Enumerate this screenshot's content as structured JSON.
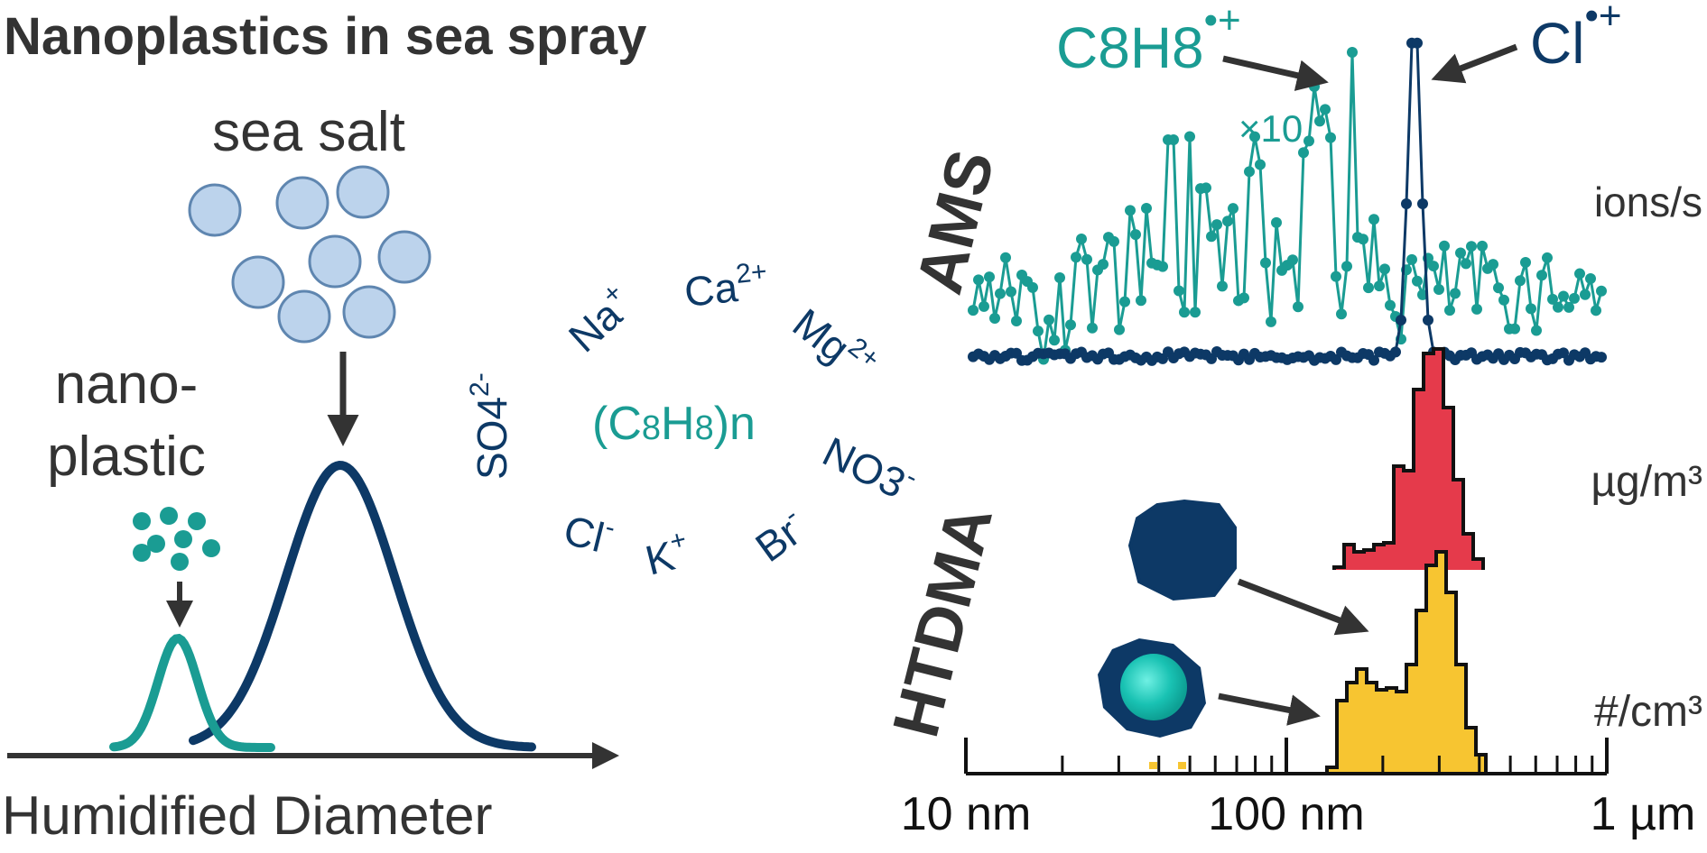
{
  "title": "Nanoplastics in sea spray",
  "colors": {
    "dark": "#333333",
    "navy": "#0d3966",
    "teal": "#1a9c93",
    "salt_fill": "#bcd3ec",
    "salt_stroke": "#5f86b0",
    "red": "#e53a4b",
    "yellow": "#f7c531",
    "teal_bright": "#19c2b3"
  },
  "left_panel": {
    "sea_salt_label": "sea salt",
    "nanoplastic_label_line1": "nano-",
    "nanoplastic_label_line2": "plastic",
    "x_axis_label": "Humidified Diameter"
  },
  "ions": {
    "so4": "SO4",
    "so4_sub": "4",
    "so4_sup": "2-",
    "na": "Na",
    "na_sup": "+",
    "ca": "Ca",
    "ca_sup": "2+",
    "mg": "Mg",
    "mg_sup": "2+",
    "no3": "NO3",
    "no3_sup": "-",
    "br": "Br",
    "br_sup": "-",
    "k": "K",
    "k_sup": "+",
    "cl": "Cl",
    "cl_sup": "-",
    "polystyrene_open": "(C",
    "polystyrene_8a": "8",
    "polystyrene_h": "H",
    "polystyrene_8b": "8",
    "polystyrene_close": ")n"
  },
  "right_panel": {
    "ams_label": "AMS",
    "htdma_label": "HTDMA",
    "c8h8_label": "C8H8",
    "c8h8_sup": "•+",
    "cl_label": "Cl",
    "cl_sup": "•+",
    "times10": "×10",
    "unit_ams": "ions/s",
    "unit_mass": "µg/m³",
    "unit_number": "#/cm³",
    "ticks": [
      "10 nm",
      "100 nm",
      "1 µm"
    ]
  }
}
